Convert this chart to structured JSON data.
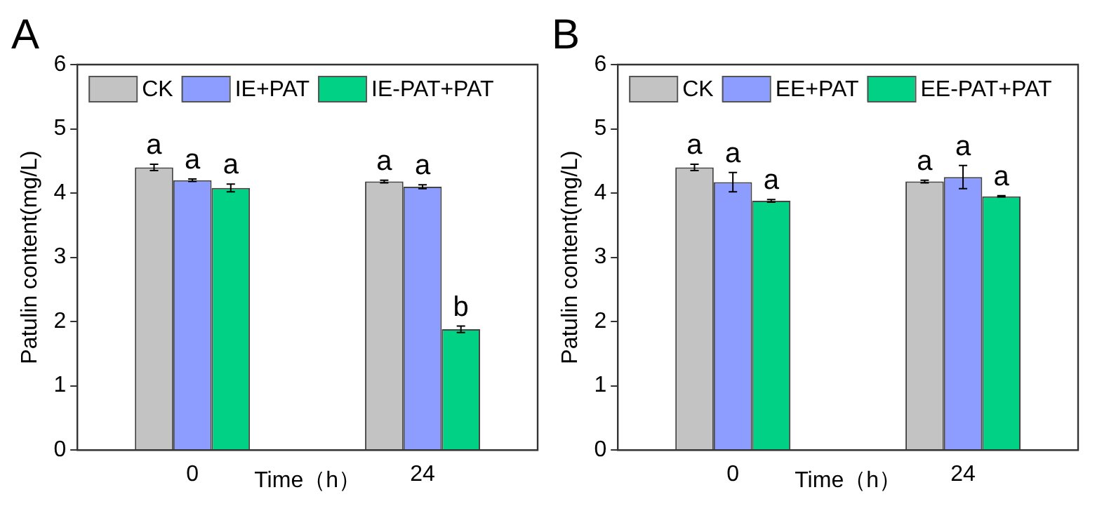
{
  "chart_data": [
    {
      "type": "bar",
      "title": "A",
      "xlabel": "Time（h）",
      "ylabel": "Patulin content(mg/L)",
      "categories": [
        "0",
        "24"
      ],
      "ylim": [
        0,
        6
      ],
      "yticks": [
        0,
        1,
        2,
        3,
        4,
        5,
        6
      ],
      "grid": false,
      "legend": "top left",
      "series": [
        {
          "name": "CK",
          "color": "#c3c3c3",
          "values": [
            4.4,
            4.18
          ],
          "errors": [
            0.05,
            0.02
          ]
        },
        {
          "name": "IE+PAT",
          "color": "#8c9cff",
          "values": [
            4.2,
            4.1
          ],
          "errors": [
            0.02,
            0.03
          ]
        },
        {
          "name": "IE-PAT+PAT",
          "color": "#00d184",
          "values": [
            4.08,
            1.88
          ],
          "errors": [
            0.06,
            0.05
          ]
        }
      ],
      "annotations": [
        "a",
        "a",
        "a",
        "a",
        "a",
        "b"
      ]
    },
    {
      "type": "bar",
      "title": "B",
      "xlabel": "Time（h）",
      "ylabel": "Patulin content(mg/L)",
      "categories": [
        "0",
        "24"
      ],
      "ylim": [
        0,
        6
      ],
      "yticks": [
        0,
        1,
        2,
        3,
        4,
        5,
        6
      ],
      "grid": false,
      "legend": "top left",
      "series": [
        {
          "name": "CK",
          "color": "#c3c3c3",
          "values": [
            4.4,
            4.18
          ],
          "errors": [
            0.05,
            0.02
          ]
        },
        {
          "name": "EE+PAT",
          "color": "#8c9cff",
          "values": [
            4.17,
            4.25
          ],
          "errors": [
            0.15,
            0.18
          ]
        },
        {
          "name": "EE-PAT+PAT",
          "color": "#00d184",
          "values": [
            3.88,
            3.95
          ],
          "errors": [
            0.02,
            0.01
          ]
        }
      ],
      "annotations": [
        "a",
        "a",
        "a",
        "a",
        "a",
        "a"
      ]
    }
  ]
}
